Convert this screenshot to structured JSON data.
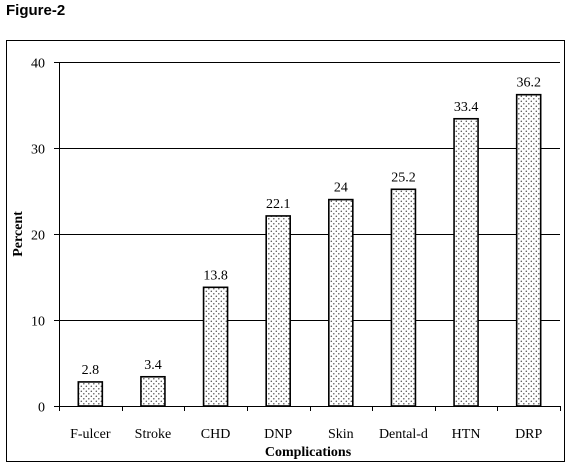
{
  "figure_label": "Figure-2",
  "chart_data": {
    "type": "bar",
    "categories": [
      "F-ulcer",
      "Stroke",
      "CHD",
      "DNP",
      "Skin",
      "Dental-d",
      "HTN",
      "DRP"
    ],
    "values": [
      2.8,
      3.4,
      13.8,
      22.1,
      24,
      25.2,
      33.4,
      36.2
    ],
    "data_labels": [
      "2.8",
      "3.4",
      "13.8",
      "22.1",
      "24",
      "25.2",
      "33.4",
      "36.2"
    ],
    "xlabel": "Complications",
    "ylabel": "Percent",
    "ylim": [
      0,
      40
    ],
    "yticks": [
      "0",
      "10",
      "20",
      "30",
      "40"
    ],
    "grid": true,
    "legend": "none",
    "bar_fill": "dotted",
    "colors": {
      "bar_edge": "#000000",
      "dot": "#555555",
      "grid": "#000000",
      "frame": "#000000"
    }
  }
}
